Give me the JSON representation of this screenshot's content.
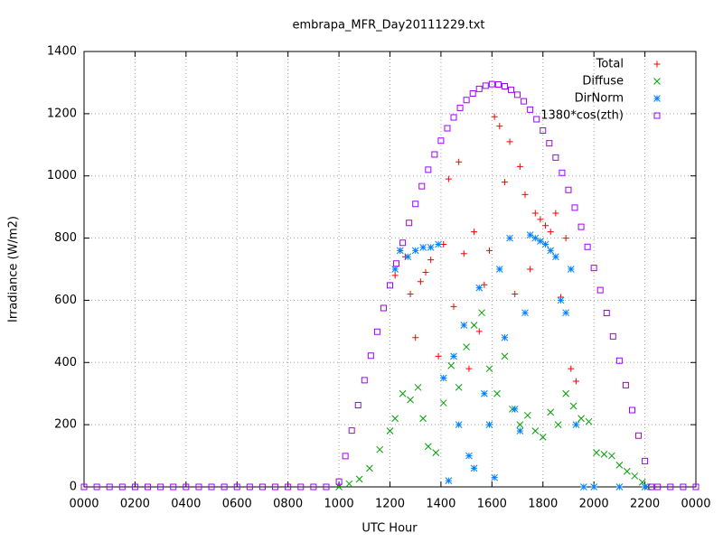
{
  "chart_data": {
    "type": "scatter",
    "title": "embrapa_MFR_Day20111229.txt",
    "x_label": "UTC Hour",
    "y_label": "Irradiance (W/m2)",
    "xlim": [
      0,
      24
    ],
    "ylim": [
      0,
      1400
    ],
    "xticks": [
      {
        "value": 0,
        "label": "0000"
      },
      {
        "value": 2,
        "label": "0200"
      },
      {
        "value": 4,
        "label": "0400"
      },
      {
        "value": 6,
        "label": "0600"
      },
      {
        "value": 8,
        "label": "0800"
      },
      {
        "value": 10,
        "label": "1000"
      },
      {
        "value": 12,
        "label": "1200"
      },
      {
        "value": 14,
        "label": "1400"
      },
      {
        "value": 16,
        "label": "1600"
      },
      {
        "value": 18,
        "label": "1800"
      },
      {
        "value": 20,
        "label": "2000"
      },
      {
        "value": 22,
        "label": "2200"
      },
      {
        "value": 24,
        "label": "0000"
      }
    ],
    "yticks": [
      0,
      200,
      400,
      600,
      800,
      1000,
      1200,
      1400
    ],
    "grid": true,
    "legend": "top-right",
    "series": [
      {
        "name": "Total",
        "color": "#ff0000",
        "marker": "plus",
        "x": [
          12.2,
          12.4,
          12.6,
          12.8,
          13.0,
          13.2,
          13.4,
          13.6,
          13.9,
          14.1,
          14.3,
          14.5,
          14.7,
          14.9,
          15.1,
          15.3,
          15.5,
          15.7,
          15.9,
          16.1,
          16.3,
          16.5,
          16.7,
          16.9,
          17.1,
          17.3,
          17.5,
          17.7,
          17.9,
          18.1,
          18.3,
          18.5,
          18.7,
          18.9,
          19.1,
          19.3
        ],
        "values": [
          680,
          760,
          740,
          620,
          480,
          660,
          690,
          730,
          420,
          780,
          990,
          580,
          1045,
          750,
          380,
          820,
          500,
          650,
          760,
          1190,
          1160,
          980,
          1110,
          620,
          1030,
          940,
          700,
          880,
          860,
          840,
          820,
          880,
          610,
          800,
          380,
          340
        ]
      },
      {
        "name": "Diffuse",
        "color": "#00a000",
        "marker": "cross",
        "x": [
          10.0,
          10.4,
          10.8,
          11.2,
          11.6,
          12.0,
          12.2,
          12.5,
          12.8,
          13.1,
          13.3,
          13.5,
          13.8,
          14.1,
          14.4,
          14.7,
          15.0,
          15.3,
          15.6,
          15.9,
          16.2,
          16.5,
          16.8,
          17.1,
          17.4,
          17.7,
          18.0,
          18.3,
          18.6,
          18.9,
          19.2,
          19.5,
          19.8,
          20.1,
          20.4,
          20.7,
          21.0,
          21.3,
          21.6,
          21.9,
          22.1
        ],
        "values": [
          0,
          10,
          25,
          60,
          120,
          180,
          220,
          300,
          280,
          320,
          220,
          130,
          110,
          270,
          390,
          320,
          450,
          520,
          560,
          380,
          300,
          420,
          250,
          200,
          230,
          180,
          160,
          240,
          200,
          300,
          260,
          220,
          210,
          110,
          105,
          100,
          70,
          50,
          35,
          15,
          0
        ]
      },
      {
        "name": "DirNorm",
        "color": "#0080ff",
        "marker": "star",
        "x": [
          12.2,
          12.4,
          12.7,
          13.0,
          13.3,
          13.6,
          13.9,
          14.1,
          14.3,
          14.5,
          14.7,
          14.9,
          15.1,
          15.3,
          15.5,
          15.7,
          15.9,
          16.1,
          16.3,
          16.5,
          16.7,
          16.9,
          17.1,
          17.3,
          17.5,
          17.7,
          17.9,
          18.1,
          18.3,
          18.5,
          18.7,
          18.9,
          19.1,
          19.3,
          19.6,
          20.0,
          21.0,
          22.0
        ],
        "values": [
          700,
          760,
          740,
          760,
          770,
          770,
          780,
          350,
          20,
          420,
          200,
          520,
          100,
          60,
          640,
          300,
          200,
          30,
          700,
          480,
          800,
          250,
          180,
          560,
          810,
          800,
          790,
          780,
          760,
          740,
          600,
          560,
          700,
          200,
          0,
          0,
          0,
          0
        ]
      },
      {
        "name": "1380*cos(zth)",
        "color": "#a000ff",
        "marker": "square",
        "x": [
          0,
          0.5,
          1,
          1.5,
          2,
          2.5,
          3,
          3.5,
          4,
          4.5,
          5,
          5.5,
          6,
          6.5,
          7,
          7.5,
          8,
          8.5,
          9,
          9.5,
          10.0,
          10.25,
          10.5,
          10.75,
          11.0,
          11.25,
          11.5,
          11.75,
          12.0,
          12.25,
          12.5,
          12.75,
          13.0,
          13.25,
          13.5,
          13.75,
          14.0,
          14.25,
          14.5,
          14.75,
          15.0,
          15.25,
          15.5,
          15.75,
          16.0,
          16.25,
          16.5,
          16.75,
          17.0,
          17.25,
          17.5,
          17.75,
          18.0,
          18.25,
          18.5,
          18.75,
          19.0,
          19.25,
          19.5,
          19.75,
          20.0,
          20.25,
          20.5,
          20.75,
          21.0,
          21.25,
          21.5,
          21.75,
          22.0,
          22.25,
          22.5,
          23,
          23.5,
          24
        ],
        "values": [
          0,
          0,
          0,
          0,
          0,
          0,
          0,
          0,
          0,
          0,
          0,
          0,
          0,
          0,
          0,
          0,
          0,
          0,
          0,
          0,
          17,
          99,
          181,
          263,
          343,
          422,
          499,
          575,
          648,
          718,
          785,
          849,
          910,
          967,
          1020,
          1069,
          1113,
          1153,
          1188,
          1219,
          1244,
          1265,
          1280,
          1290,
          1295,
          1294,
          1288,
          1277,
          1261,
          1240,
          1213,
          1182,
          1146,
          1105,
          1059,
          1010,
          955,
          898,
          836,
          772,
          704,
          633,
          559,
          484,
          406,
          327,
          247,
          165,
          83,
          0,
          0,
          0,
          0,
          0
        ]
      }
    ]
  }
}
